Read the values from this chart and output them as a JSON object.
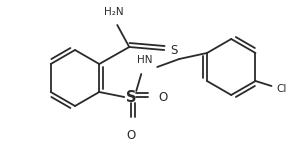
{
  "bg_color": "#ffffff",
  "line_color": "#2a2a2a",
  "line_width": 1.3,
  "text_color": "#2a2a2a",
  "font_size": 7.5,
  "figsize": [
    3.07,
    1.6
  ],
  "dpi": 100,
  "xlim": [
    0,
    307
  ],
  "ylim": [
    0,
    160
  ]
}
